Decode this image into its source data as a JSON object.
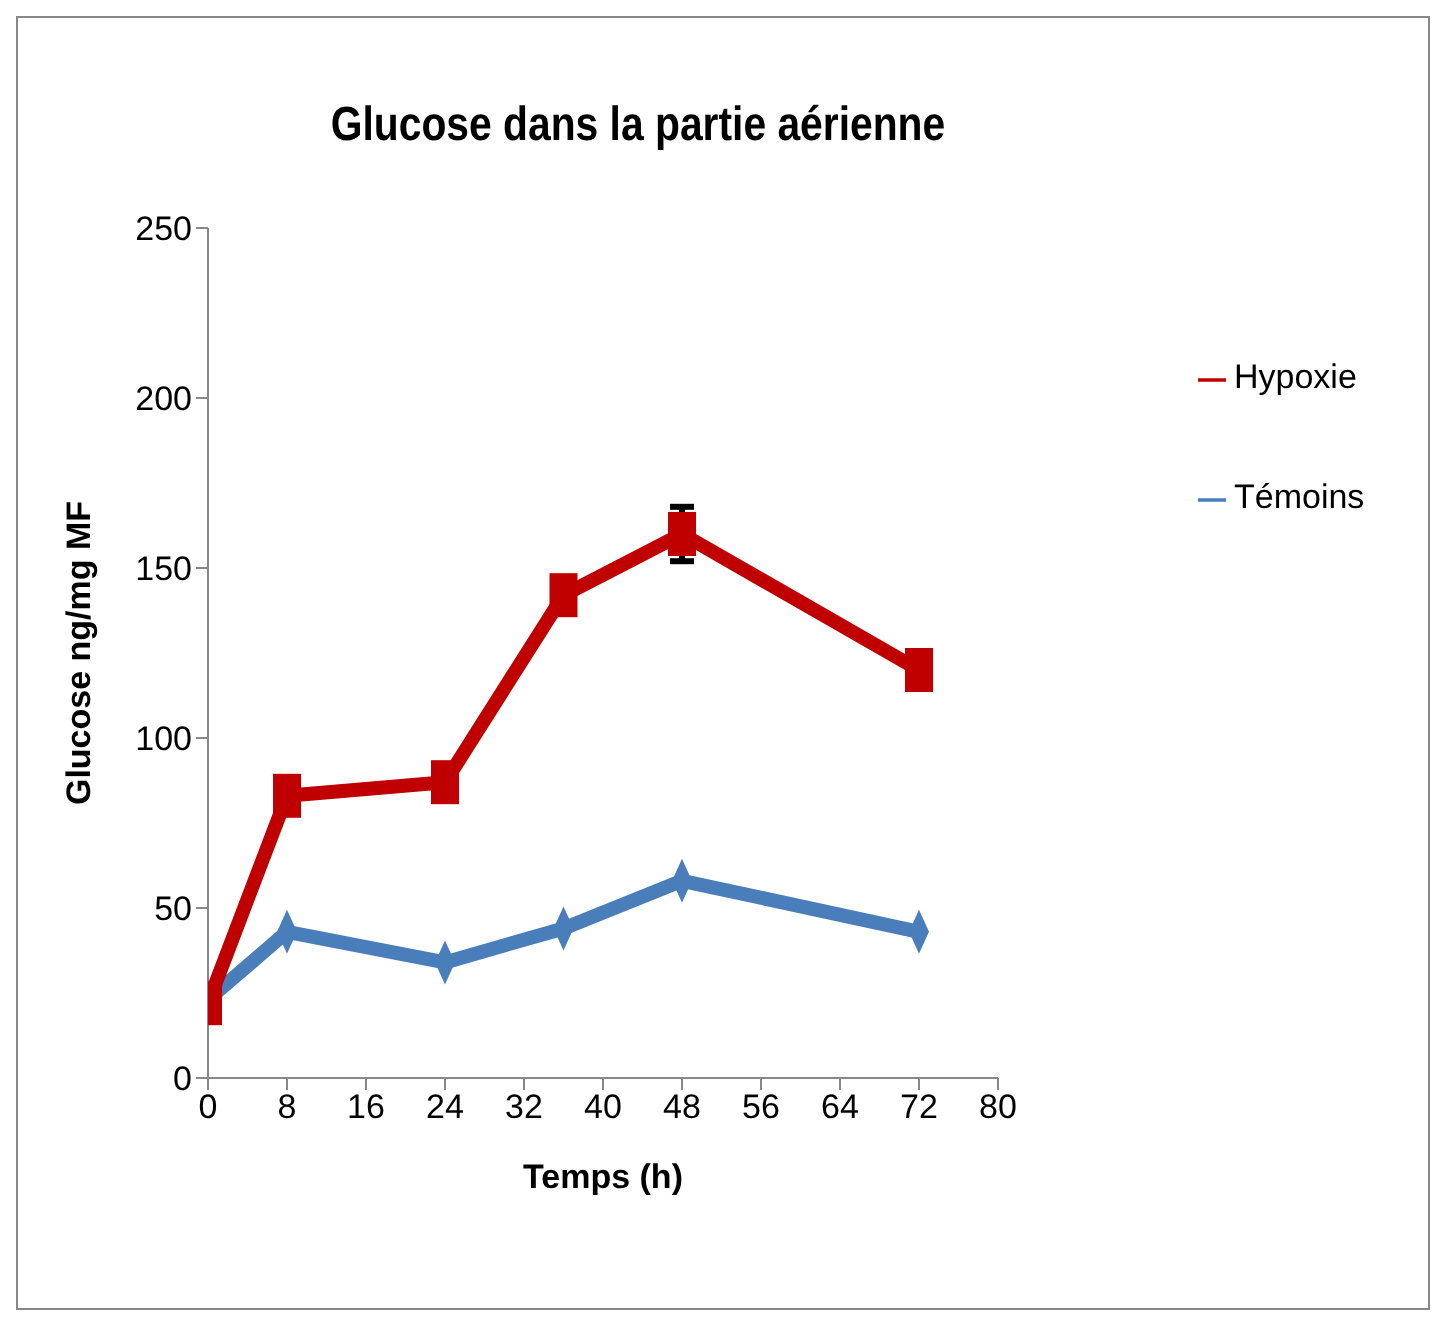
{
  "chart_data": {
    "type": "line",
    "title": "Glucose dans la partie aérienne",
    "xlabel": "Temps (h)",
    "ylabel": "Glucose  ng/mg MF",
    "x": [
      0,
      8,
      24,
      36,
      48,
      72
    ],
    "xlim": [
      0,
      80
    ],
    "xticks": [
      0,
      8,
      16,
      24,
      32,
      40,
      48,
      56,
      64,
      72,
      80
    ],
    "ylim": [
      0,
      250
    ],
    "yticks": [
      0,
      50,
      100,
      150,
      200,
      250
    ],
    "grid": false,
    "legend": "top right",
    "series": [
      {
        "name": "Témoins",
        "color": "#4a7ebb",
        "marker": "diamond",
        "values": [
          23,
          43,
          34,
          44,
          58,
          43
        ]
      },
      {
        "name": "Hypoxie",
        "color": "#c00000",
        "marker": "square",
        "values": [
          22,
          83,
          87,
          142,
          160,
          120
        ],
        "errors": [
          null,
          null,
          null,
          null,
          8,
          null
        ]
      }
    ]
  }
}
